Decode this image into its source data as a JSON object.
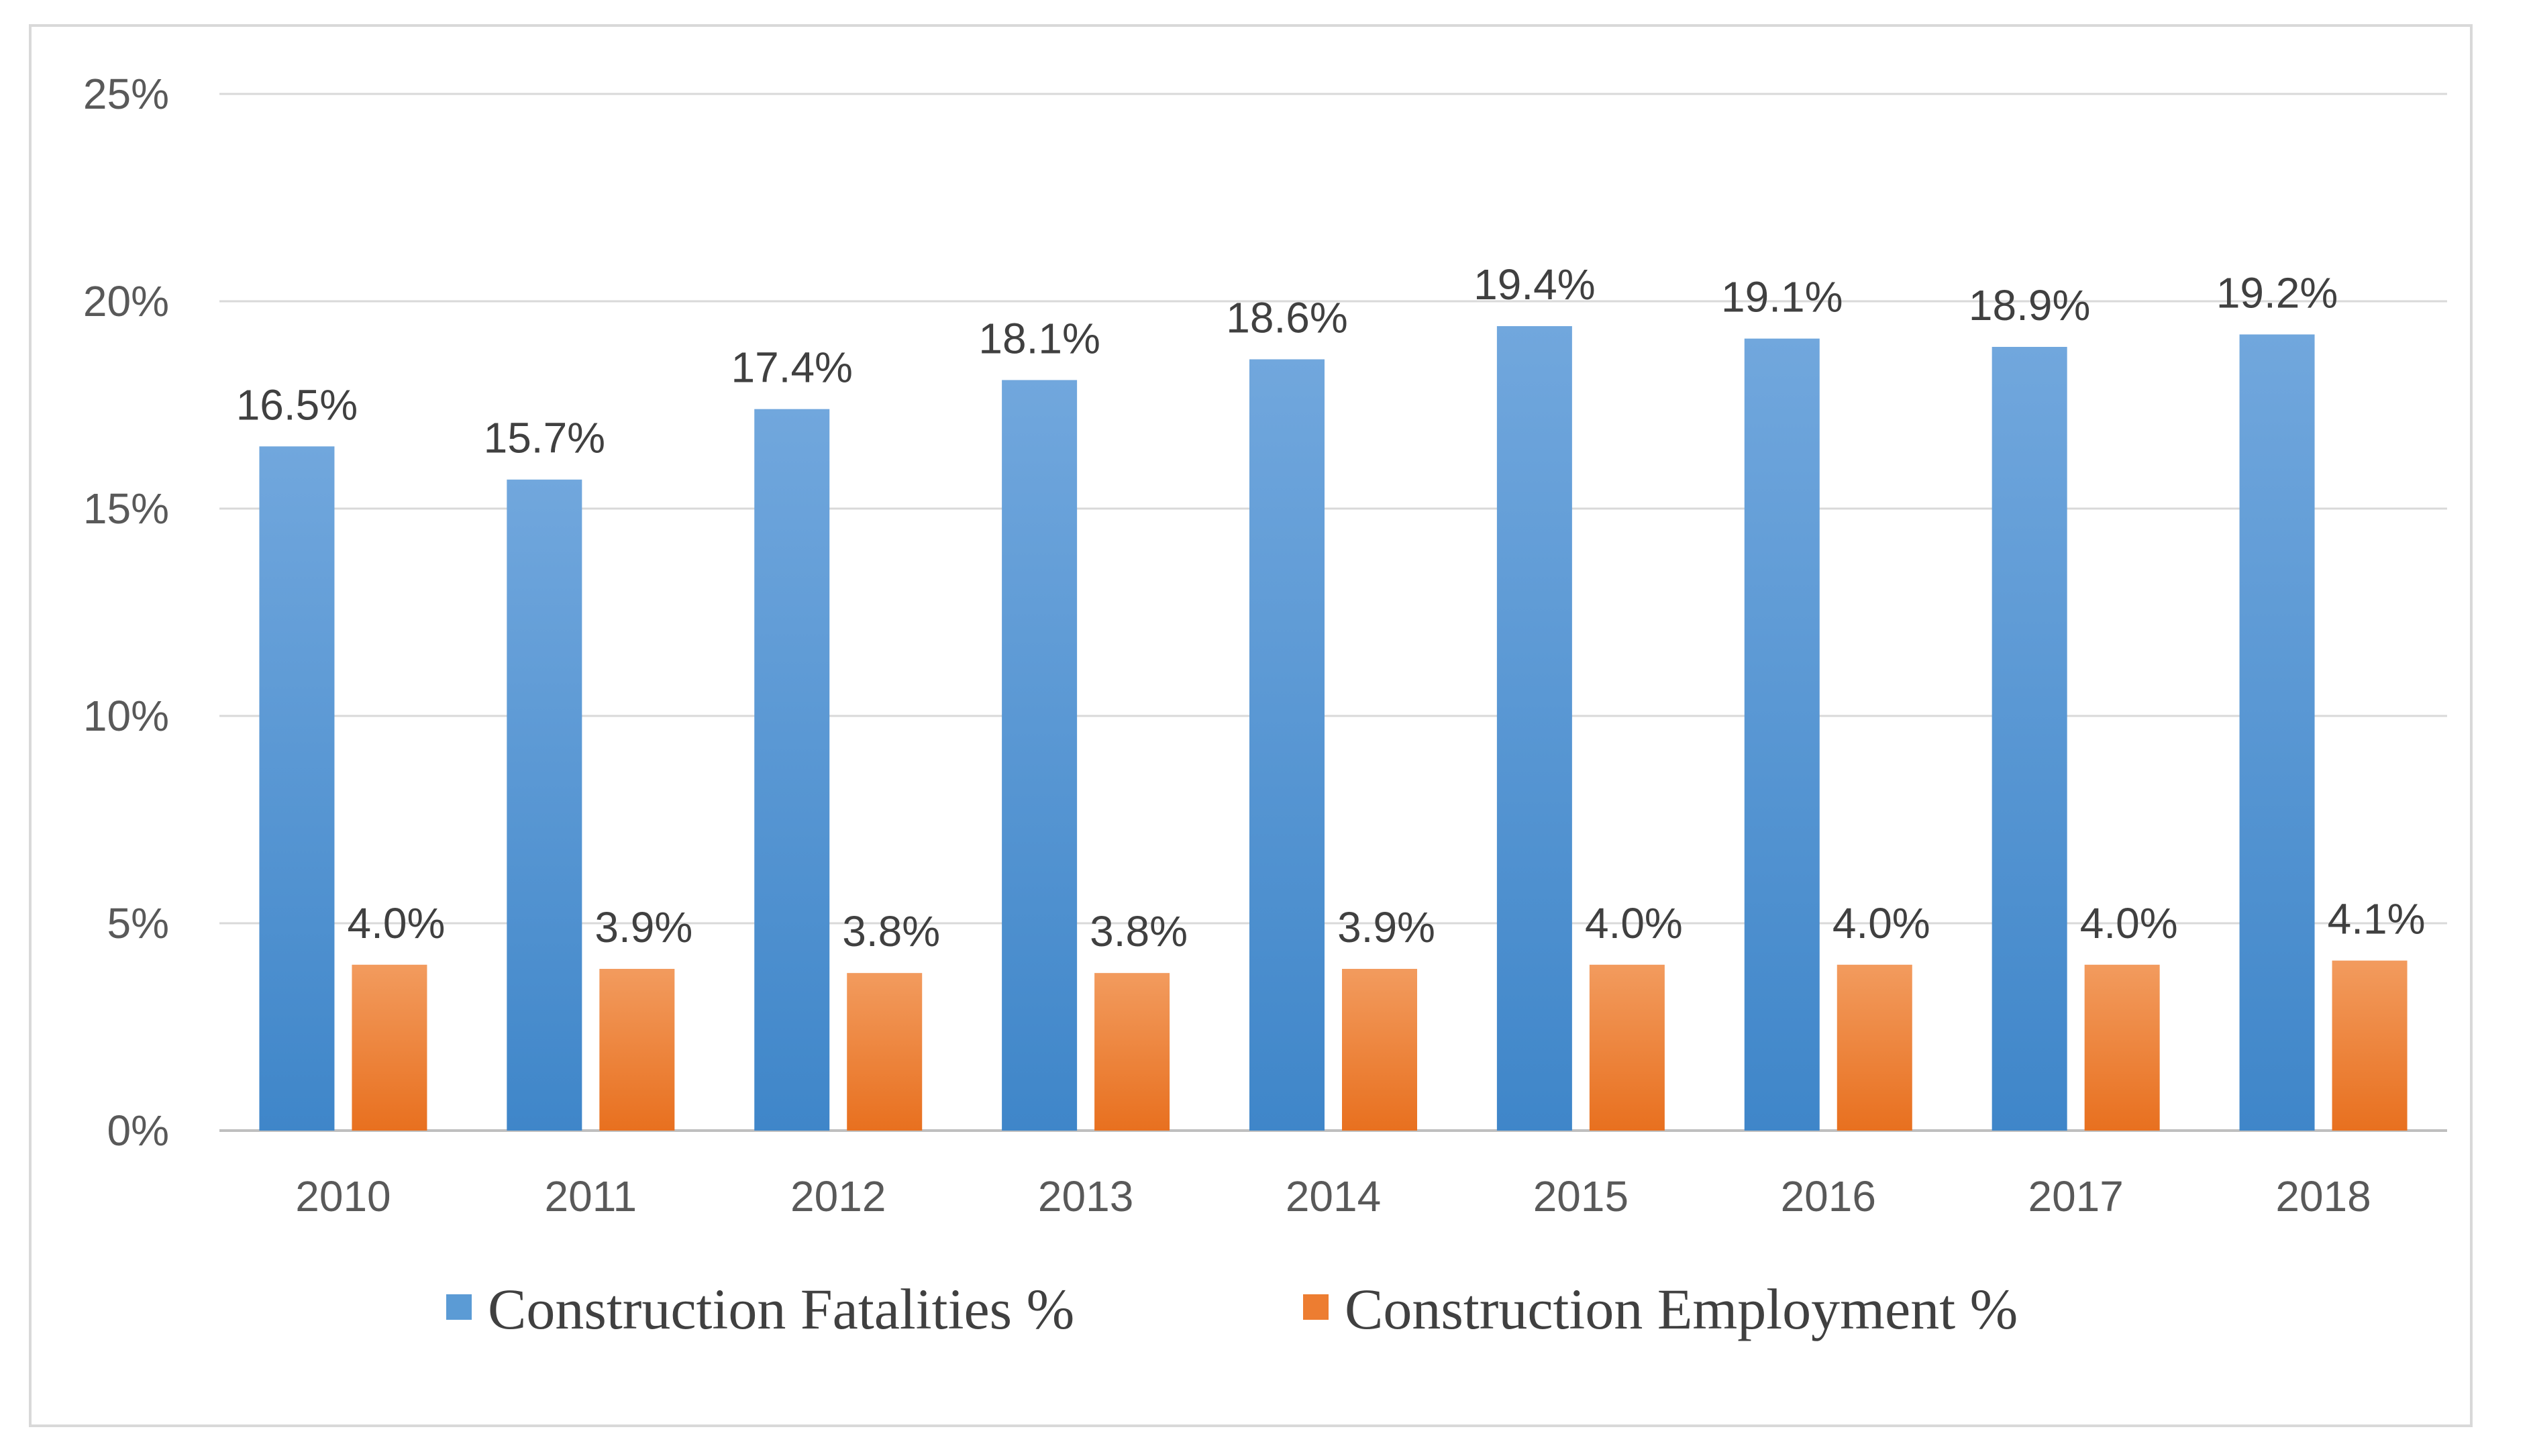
{
  "chart_data": {
    "type": "bar",
    "title": "",
    "xlabel": "",
    "ylabel": "",
    "categories": [
      "2010",
      "2011",
      "2012",
      "2013",
      "2014",
      "2015",
      "2016",
      "2017",
      "2018"
    ],
    "series": [
      {
        "name": "Construction Fatalities %",
        "values": [
          16.5,
          15.7,
          17.4,
          18.1,
          18.6,
          19.4,
          19.1,
          18.9,
          19.2
        ],
        "labels": [
          "16.5%",
          "15.7%",
          "17.4%",
          "18.1%",
          "18.6%",
          "19.4%",
          "19.1%",
          "18.9%",
          "19.2%"
        ],
        "color": "#5b9bd5"
      },
      {
        "name": "Construction Employment %",
        "values": [
          4.0,
          3.9,
          3.8,
          3.8,
          3.9,
          4.0,
          4.0,
          4.0,
          4.1
        ],
        "labels": [
          "4.0%",
          "3.9%",
          "3.8%",
          "3.8%",
          "3.9%",
          "4.0%",
          "4.0%",
          "4.0%",
          "4.1%"
        ],
        "color": "#ed7d31"
      }
    ],
    "ylim": [
      0,
      25
    ],
    "yticks": [
      0,
      5,
      10,
      15,
      20,
      25
    ],
    "ytick_labels": [
      "0%",
      "5%",
      "10%",
      "15%",
      "20%",
      "25%"
    ],
    "grid": true,
    "legend": "bottom-center"
  }
}
